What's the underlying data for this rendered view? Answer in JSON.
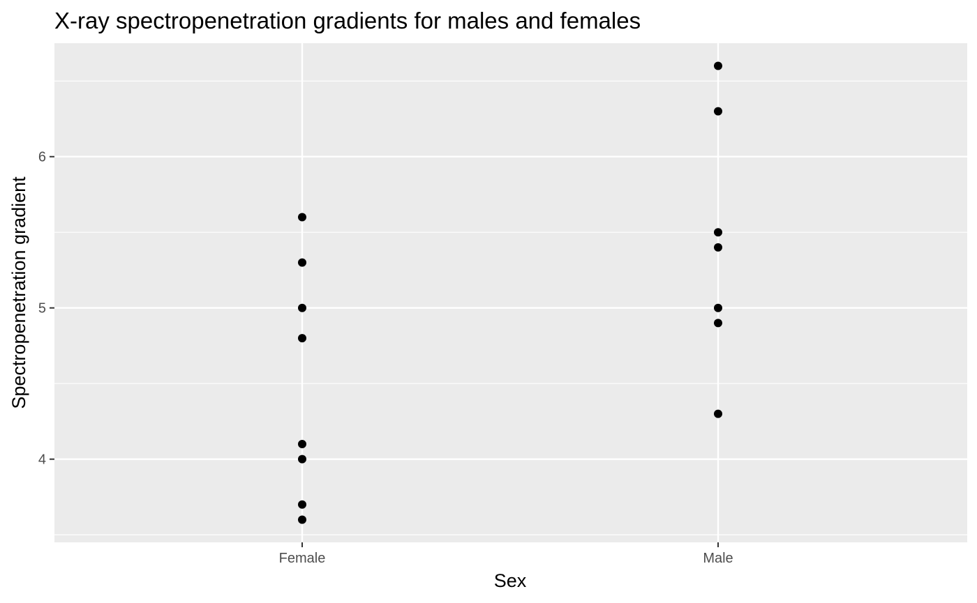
{
  "chart_data": {
    "type": "scatter",
    "title": "X-ray spectropenetration gradients for males and females",
    "xlabel": "Sex",
    "ylabel": "Spectropenetration gradient",
    "categories": [
      "Female",
      "Male"
    ],
    "ylim": [
      3.45,
      6.75
    ],
    "yticks": [
      4,
      5,
      6
    ],
    "ytick_labels": [
      "4",
      "5",
      "6"
    ],
    "grid": true,
    "series": [
      {
        "points": [
          {
            "x": "Female",
            "y": 5.6
          },
          {
            "x": "Female",
            "y": 5.3
          },
          {
            "x": "Female",
            "y": 5.0
          },
          {
            "x": "Female",
            "y": 4.8
          },
          {
            "x": "Female",
            "y": 4.1
          },
          {
            "x": "Female",
            "y": 4.0
          },
          {
            "x": "Female",
            "y": 3.7
          },
          {
            "x": "Female",
            "y": 3.6
          },
          {
            "x": "Male",
            "y": 6.6
          },
          {
            "x": "Male",
            "y": 6.3
          },
          {
            "x": "Male",
            "y": 5.5
          },
          {
            "x": "Male",
            "y": 5.4
          },
          {
            "x": "Male",
            "y": 5.0
          },
          {
            "x": "Male",
            "y": 4.9
          },
          {
            "x": "Male",
            "y": 4.3
          }
        ]
      }
    ],
    "colors": {
      "panel_background": "#ebebeb",
      "grid_line": "#ffffff",
      "point": "#000000",
      "tick_label": "#4d4d4d",
      "tick_mark": "#333333"
    }
  }
}
